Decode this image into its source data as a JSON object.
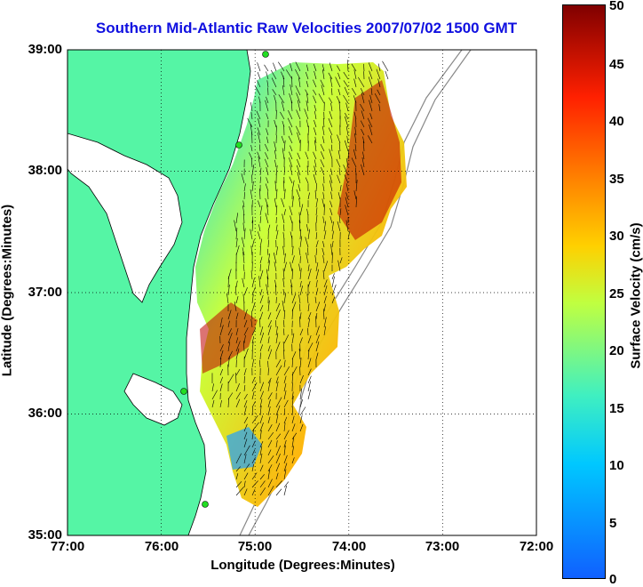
{
  "title": "Southern Mid-Atlantic Raw Velocities 2007/07/02 1500 GMT",
  "xlabel": "Longitude (Degrees:Minutes)",
  "ylabel": "Latitude (Degrees:Minutes)",
  "colorbar": {
    "label": "Surface Velocity (cm/s)",
    "ticks": [
      "0",
      "5",
      "10",
      "15",
      "20",
      "25",
      "30",
      "35",
      "40",
      "45",
      "50"
    ],
    "range": [
      0,
      50
    ]
  },
  "axes": {
    "x_ticks": [
      "77:00",
      "76:00",
      "75:00",
      "74:00",
      "73:00",
      "72:00"
    ],
    "y_ticks": [
      "39:00",
      "38:00",
      "37:00",
      "36:00",
      "35:00"
    ],
    "lon_range": [
      -77,
      -72
    ],
    "lat_range": [
      35,
      39
    ]
  },
  "colors": {
    "land": "#55f5a5",
    "water": "#ffffff",
    "title": "#1010e0",
    "station": "#22dd22"
  }
}
